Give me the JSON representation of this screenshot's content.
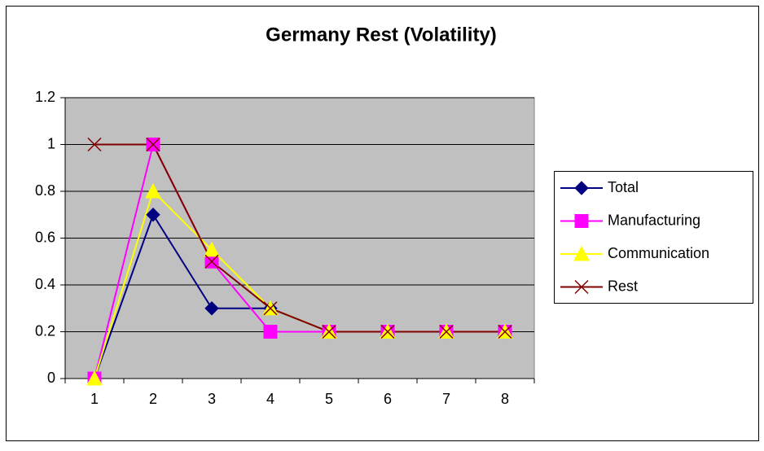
{
  "chart_data": {
    "type": "line",
    "title": "Germany Rest (Volatility)",
    "categories": [
      "1",
      "2",
      "3",
      "4",
      "5",
      "6",
      "7",
      "8"
    ],
    "series": [
      {
        "name": "Total",
        "color": "#000080",
        "marker": "diamond",
        "values": [
          0,
          0.7,
          0.3,
          0.3,
          0.2,
          0.2,
          0.2,
          0.2
        ]
      },
      {
        "name": "Manufacturing",
        "color": "#ff00ff",
        "marker": "square",
        "values": [
          0,
          1,
          0.5,
          0.2,
          0.2,
          0.2,
          0.2,
          0.2
        ]
      },
      {
        "name": "Communication",
        "color": "#ffff00",
        "marker": "triangle",
        "values": [
          0,
          0.8,
          0.55,
          0.3,
          0.2,
          0.2,
          0.2,
          0.2
        ]
      },
      {
        "name": "Rest",
        "color": "#800000",
        "marker": "x",
        "values": [
          1,
          1,
          0.5,
          0.3,
          0.2,
          0.2,
          0.2,
          0.2
        ]
      }
    ],
    "ylim": [
      0,
      1.2
    ],
    "yticks": [
      0,
      0.2,
      0.4,
      0.6,
      0.8,
      1,
      1.2
    ],
    "grid": true,
    "legend": "right"
  }
}
